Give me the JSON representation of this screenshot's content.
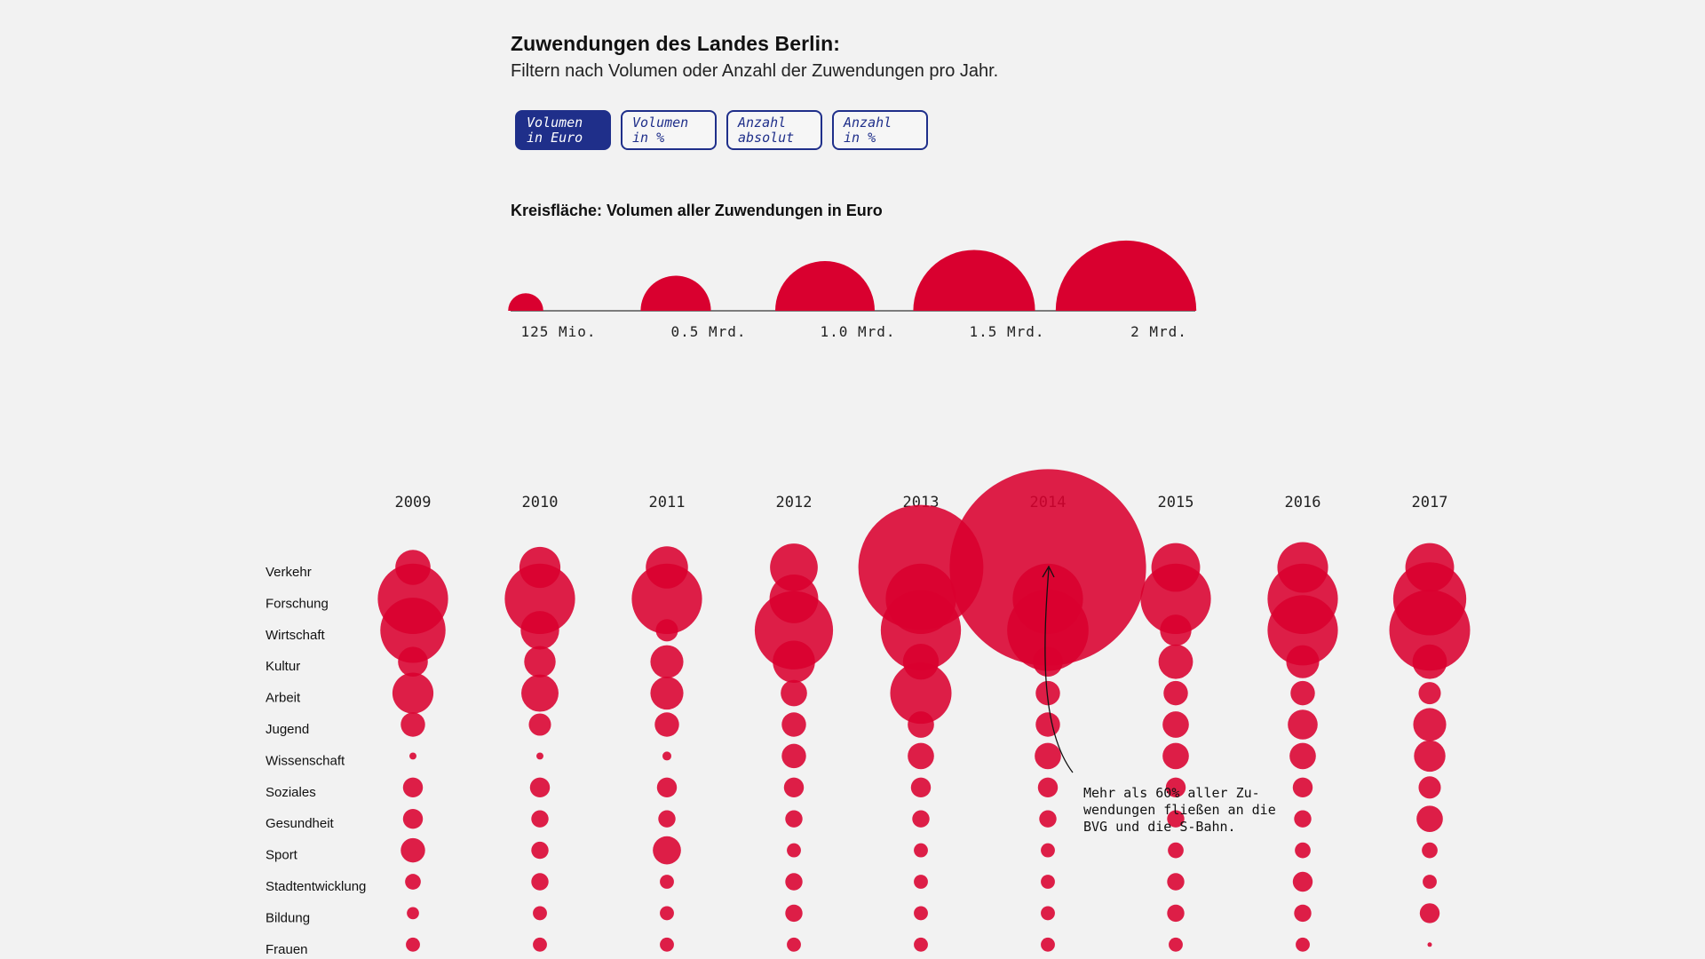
{
  "header": {
    "title": "Zuwendungen des Landes Berlin:",
    "subtitle": "Filtern nach Volumen oder Anzahl der Zuwendungen pro Jahr."
  },
  "filters": [
    {
      "line1": "Volumen",
      "line2": "in Euro",
      "active": true
    },
    {
      "line1": "Volumen",
      "line2": "in %",
      "active": false
    },
    {
      "line1": "Anzahl",
      "line2": "absolut",
      "active": false
    },
    {
      "line1": "Anzahl",
      "line2": "in %",
      "active": false
    }
  ],
  "colors": {
    "accent": "#d9002f",
    "button": "#1f2f8a",
    "background": "#f2f2f2"
  },
  "annotation": {
    "text": "Mehr als 60% aller Zu-\nwendungen fließen an die\nBVG und die S-Bahn."
  },
  "chart_data": [
    {
      "type": "legend",
      "title": "Kreisfläche: Volumen aller Zuwendungen in Euro",
      "values": [
        0.125,
        0.5,
        1.0,
        1.5,
        2.0
      ],
      "labels": [
        "125 Mio.",
        "0.5 Mrd.",
        "1.0 Mrd.",
        "1.5 Mrd.",
        "2 Mrd."
      ],
      "unit": "Mrd. Euro"
    },
    {
      "type": "bubble-matrix",
      "encoding": "circle area = funding volume (Mrd. Euro)",
      "years": [
        "2009",
        "2010",
        "2011",
        "2012",
        "2013",
        "2014",
        "2015",
        "2016",
        "2017"
      ],
      "categories": [
        "Verkehr",
        "Forschung",
        "Wirtschaft",
        "Kultur",
        "Arbeit",
        "Jugend",
        "Wissenschaft",
        "Soziales",
        "Gesundheit",
        "Sport",
        "Stadtentwicklung",
        "Bildung",
        "Frauen"
      ],
      "values": [
        [
          0.125,
          0.5,
          0.43,
          0.09,
          0.17,
          0.06,
          0.005,
          0.04,
          0.04,
          0.06,
          0.025,
          0.015,
          0.02
        ],
        [
          0.17,
          0.5,
          0.15,
          0.1,
          0.14,
          0.05,
          0.005,
          0.04,
          0.03,
          0.03,
          0.03,
          0.02,
          0.02
        ],
        [
          0.18,
          0.5,
          0.05,
          0.11,
          0.11,
          0.06,
          0.008,
          0.04,
          0.03,
          0.08,
          0.02,
          0.02,
          0.02
        ],
        [
          0.23,
          0.24,
          0.62,
          0.18,
          0.07,
          0.06,
          0.06,
          0.04,
          0.03,
          0.02,
          0.03,
          0.03,
          0.02
        ],
        [
          1.58,
          0.5,
          0.65,
          0.13,
          0.38,
          0.07,
          0.07,
          0.04,
          0.03,
          0.02,
          0.02,
          0.02,
          0.02
        ],
        [
          3.9,
          0.5,
          0.67,
          0.09,
          0.06,
          0.06,
          0.07,
          0.04,
          0.03,
          0.02,
          0.02,
          0.02,
          0.02
        ],
        [
          0.24,
          0.5,
          0.1,
          0.12,
          0.06,
          0.07,
          0.07,
          0.04,
          0.03,
          0.025,
          0.03,
          0.03,
          0.02
        ],
        [
          0.26,
          0.5,
          0.5,
          0.11,
          0.06,
          0.09,
          0.07,
          0.04,
          0.03,
          0.025,
          0.04,
          0.03,
          0.02
        ],
        [
          0.24,
          0.54,
          0.66,
          0.12,
          0.05,
          0.11,
          0.1,
          0.05,
          0.07,
          0.025,
          0.02,
          0.04,
          0.002
        ]
      ]
    }
  ]
}
